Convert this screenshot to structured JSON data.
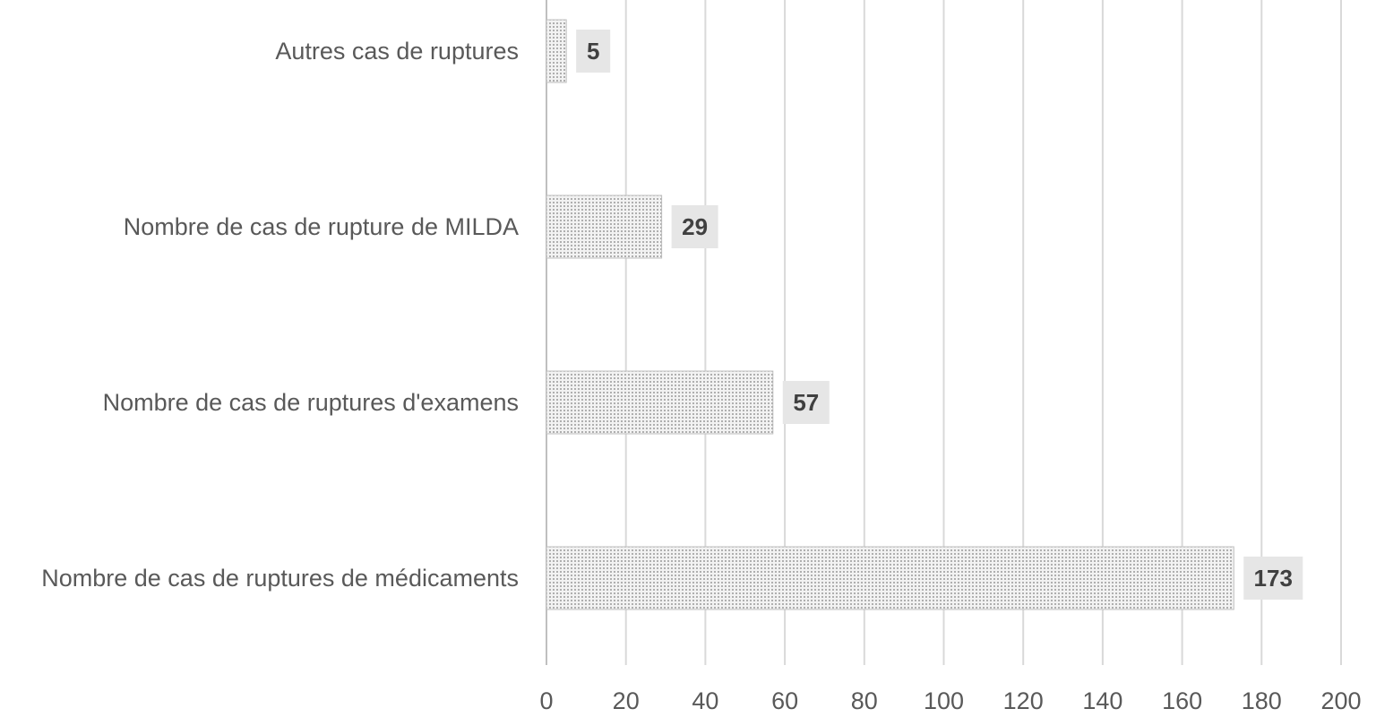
{
  "chart_data": {
    "type": "bar",
    "orientation": "horizontal",
    "categories": [
      "Autres cas de ruptures",
      "Nombre de cas de rupture de MILDA",
      "Nombre de cas de ruptures d'examens",
      "Nombre de cas de ruptures de médicaments"
    ],
    "values": [
      5,
      29,
      57,
      173
    ],
    "data_labels": [
      "5",
      "29",
      "57",
      "173"
    ],
    "x_ticks": [
      "0",
      "20",
      "40",
      "60",
      "80",
      "100",
      "120",
      "140",
      "160",
      "180",
      "200"
    ],
    "xlim": [
      0,
      200
    ],
    "grid": true,
    "legend": false,
    "colors": {
      "bar_fill": "#f2f2f2",
      "bar_dots": "#7f7f7f",
      "gridline": "#d9d9d9",
      "label_box": "#e6e6e6",
      "text": "#595959"
    }
  }
}
